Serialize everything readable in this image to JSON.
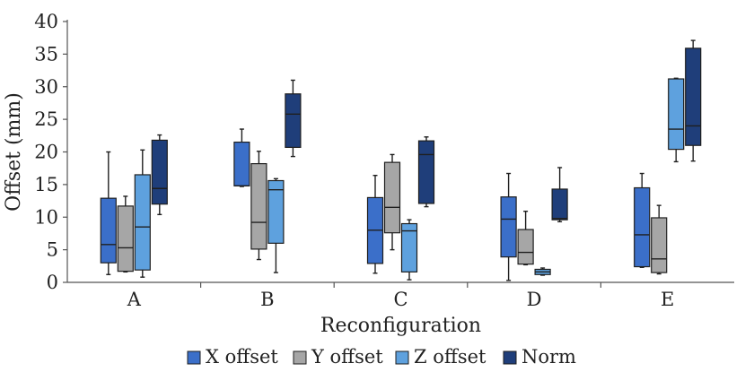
{
  "chart_data": {
    "type": "boxplot",
    "title": "",
    "xlabel": "Reconfiguration",
    "ylabel": "Offset (mm)",
    "ylim": [
      0,
      40
    ],
    "yticks": [
      0,
      5,
      10,
      15,
      20,
      25,
      30,
      35,
      40
    ],
    "categories": [
      "A",
      "B",
      "C",
      "D",
      "E"
    ],
    "legend_position": "bottom",
    "series": [
      {
        "name": "X offset",
        "color": "#3b6fc9",
        "boxes": [
          {
            "min": 1.2,
            "q1": 3.0,
            "median": 5.8,
            "q3": 12.9,
            "max": 20.0
          },
          {
            "min": 14.7,
            "q1": 14.8,
            "median": 14.8,
            "q3": 21.5,
            "max": 23.5
          },
          {
            "min": 1.4,
            "q1": 2.9,
            "median": 8.0,
            "q3": 13.0,
            "max": 16.4
          },
          {
            "min": 0.3,
            "q1": 3.9,
            "median": 9.7,
            "q3": 13.1,
            "max": 16.7
          },
          {
            "min": 2.3,
            "q1": 2.4,
            "median": 7.3,
            "q3": 14.5,
            "max": 16.7
          }
        ]
      },
      {
        "name": "Y offset",
        "color": "#a6a6a6",
        "boxes": [
          {
            "min": 1.6,
            "q1": 1.7,
            "median": 5.3,
            "q3": 11.7,
            "max": 13.2
          },
          {
            "min": 3.5,
            "q1": 5.1,
            "median": 9.2,
            "q3": 18.2,
            "max": 20.1
          },
          {
            "min": 5.0,
            "q1": 7.6,
            "median": 11.5,
            "q3": 18.4,
            "max": 19.6
          },
          {
            "min": 2.7,
            "q1": 2.8,
            "median": 4.6,
            "q3": 8.1,
            "max": 10.9
          },
          {
            "min": 1.3,
            "q1": 1.5,
            "median": 3.6,
            "q3": 9.9,
            "max": 11.8
          }
        ]
      },
      {
        "name": "Z offset",
        "color": "#5ea1de",
        "boxes": [
          {
            "min": 0.8,
            "q1": 1.9,
            "median": 8.5,
            "q3": 16.5,
            "max": 20.3
          },
          {
            "min": 1.5,
            "q1": 6.0,
            "median": 14.2,
            "q3": 15.6,
            "max": 15.9
          },
          {
            "min": 0.4,
            "q1": 1.6,
            "median": 7.9,
            "q3": 9.0,
            "max": 9.6
          },
          {
            "min": 1.1,
            "q1": 1.2,
            "median": 1.6,
            "q3": 2.0,
            "max": 2.2
          },
          {
            "min": 18.5,
            "q1": 20.4,
            "median": 23.5,
            "q3": 31.2,
            "max": 31.3
          }
        ]
      },
      {
        "name": "Norm",
        "color": "#1f3e7a",
        "boxes": [
          {
            "min": 10.4,
            "q1": 12.0,
            "median": 14.4,
            "q3": 21.8,
            "max": 22.6
          },
          {
            "min": 19.3,
            "q1": 20.7,
            "median": 25.8,
            "q3": 28.9,
            "max": 31.0
          },
          {
            "min": 11.6,
            "q1": 12.1,
            "median": 19.6,
            "q3": 21.7,
            "max": 22.3
          },
          {
            "min": 9.3,
            "q1": 9.6,
            "median": 9.8,
            "q3": 14.3,
            "max": 17.6
          },
          {
            "min": 18.6,
            "q1": 21.0,
            "median": 24.0,
            "q3": 35.9,
            "max": 37.1
          }
        ]
      }
    ]
  }
}
